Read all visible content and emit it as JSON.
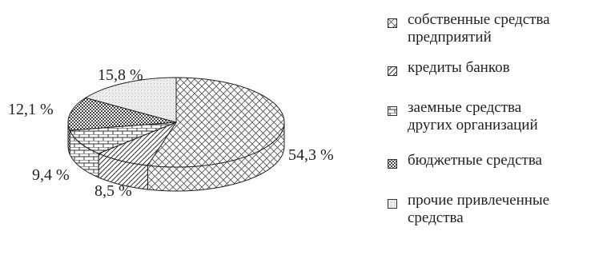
{
  "chart_data": {
    "type": "pie",
    "style": "3d",
    "slices": [
      {
        "label": "собственные средства\nпредприятий",
        "value": 54.3,
        "value_label": "54,3 %",
        "pattern": "crosshatch"
      },
      {
        "label": "кредиты банков",
        "value": 8.5,
        "value_label": "8,5 %",
        "pattern": "diagonal"
      },
      {
        "label": "заемные средства\nдругих организаций",
        "value": 9.4,
        "value_label": "9,4 %",
        "pattern": "brick"
      },
      {
        "label": "бюджетные средства",
        "value": 12.1,
        "value_label": "12,1 %",
        "pattern": "dense"
      },
      {
        "label": "прочие привлеченные\nсредства",
        "value": 15.8,
        "value_label": "15,8 %",
        "pattern": "light"
      }
    ],
    "legend_position": "right"
  }
}
